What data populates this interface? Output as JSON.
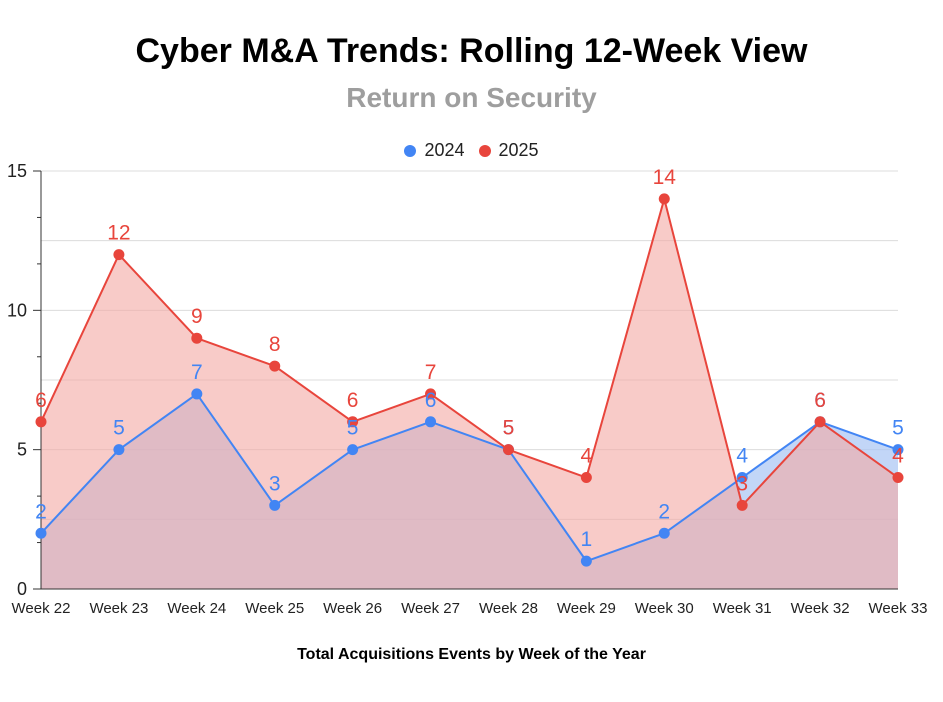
{
  "chart_data": {
    "type": "area",
    "title": "Cyber M&A Trends: Rolling 12-Week View",
    "subtitle": "Return on Security",
    "xlabel": "Total Acquisitions Events by Week of the Year",
    "ylabel": "",
    "categories": [
      "Week 22",
      "Week 23",
      "Week 24",
      "Week 25",
      "Week 26",
      "Week 27",
      "Week 28",
      "Week 29",
      "Week 30",
      "Week 31",
      "Week 32",
      "Week 33"
    ],
    "series": [
      {
        "name": "2024",
        "color": "#4285f4",
        "fill": "#a8c4f4",
        "values": [
          2,
          5,
          7,
          3,
          5,
          6,
          5,
          1,
          2,
          4,
          6,
          5
        ]
      },
      {
        "name": "2025",
        "color": "#e8453c",
        "fill": "#f4a9a4",
        "values": [
          6,
          12,
          9,
          8,
          6,
          7,
          5,
          4,
          14,
          3,
          6,
          4
        ]
      }
    ],
    "ylim": [
      0,
      15
    ],
    "yticks": [
      0,
      5,
      10,
      15
    ],
    "grid": true,
    "legend_position": "top-center",
    "data_labels": true
  }
}
